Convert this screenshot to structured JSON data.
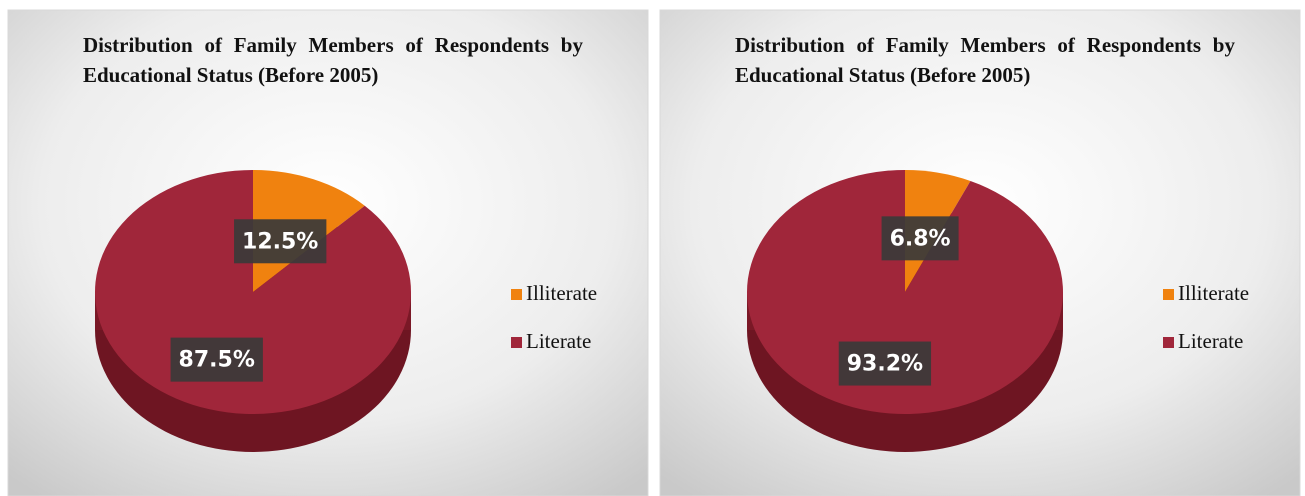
{
  "chart_data": [
    {
      "type": "pie",
      "title": "Distribution of Family Members of Respondents by Educational Status (Before 2005)",
      "categories": [
        "Illiterate",
        "Literate"
      ],
      "values": [
        12.5,
        87.5
      ],
      "value_labels": [
        "12.5%",
        "87.5%"
      ],
      "colors": [
        "#f0820f",
        "#a0263a"
      ],
      "legend": "right"
    },
    {
      "type": "pie",
      "title": "Distribution of Family Members of Respondents by Educational Status (Before 2005)",
      "categories": [
        "Illiterate",
        "Literate"
      ],
      "values": [
        6.8,
        93.2
      ],
      "value_labels": [
        "6.8%",
        "93.2%"
      ],
      "colors": [
        "#f0820f",
        "#a0263a"
      ],
      "legend": "right"
    }
  ]
}
